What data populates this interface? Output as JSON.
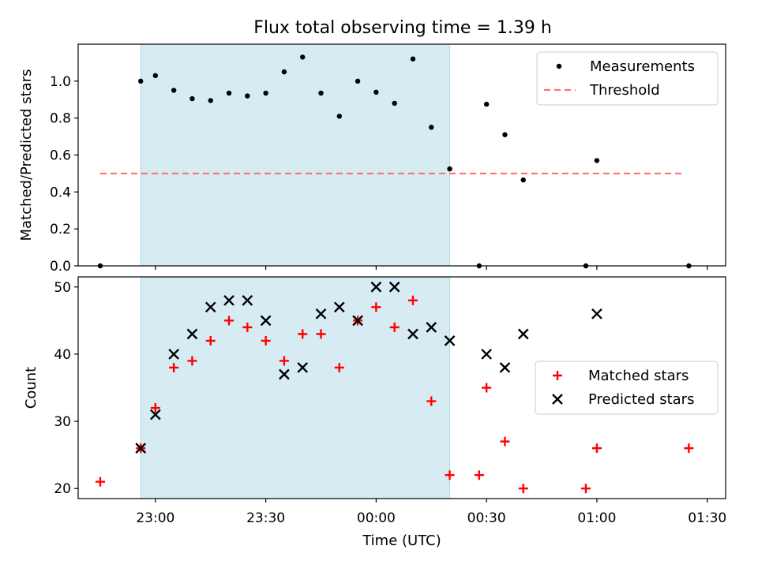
{
  "chart_data": [
    {
      "type": "scatter",
      "title": "Flux total observing time = 1.39 h",
      "xlabel": "",
      "ylabel": "Matched/Predicted stars",
      "xlim_minutes": [
        -81,
        95
      ],
      "ylim": [
        0,
        1.2
      ],
      "yticks": [
        0.0,
        0.2,
        0.4,
        0.6,
        0.8,
        1.0
      ],
      "ytick_labels": [
        "0.0",
        "0.2",
        "0.4",
        "0.6",
        "0.8",
        "1.0"
      ],
      "highlight_span_minutes": [
        -64,
        20
      ],
      "legend_position": "top-right",
      "series": [
        {
          "name": "Measurements",
          "marker": "dot",
          "color": "#000000",
          "points": [
            [
              -75,
              0.0
            ],
            [
              -64,
              1.0
            ],
            [
              -60,
              1.03
            ],
            [
              -55,
              0.95
            ],
            [
              -50,
              0.905
            ],
            [
              -45,
              0.895
            ],
            [
              -40,
              0.935
            ],
            [
              -35,
              0.92
            ],
            [
              -30,
              0.935
            ],
            [
              -25,
              1.05
            ],
            [
              -20,
              1.13
            ],
            [
              -15,
              0.935
            ],
            [
              -10,
              0.81
            ],
            [
              -5,
              1.0
            ],
            [
              0,
              0.94
            ],
            [
              5,
              0.88
            ],
            [
              10,
              1.12
            ],
            [
              15,
              0.75
            ],
            [
              20,
              0.525
            ],
            [
              28,
              0.0
            ],
            [
              30,
              0.875
            ],
            [
              35,
              0.71
            ],
            [
              40,
              0.465
            ],
            [
              57,
              0.0
            ],
            [
              60,
              0.57
            ],
            [
              85,
              0.0
            ]
          ]
        },
        {
          "name": "Threshold",
          "marker": "dashed-line",
          "color": "#ff7070",
          "points": [
            [
              -75,
              0.5
            ],
            [
              84,
              0.5
            ]
          ]
        }
      ]
    },
    {
      "type": "scatter",
      "title": "",
      "xlabel": "Time (UTC)",
      "ylabel": "Count",
      "xlim_minutes": [
        -81,
        95
      ],
      "ylim": [
        18.5,
        51.5
      ],
      "yticks": [
        20,
        30,
        40,
        50
      ],
      "ytick_labels": [
        "20",
        "30",
        "40",
        "50"
      ],
      "xticks_minutes": [
        -60,
        -30,
        0,
        30,
        60,
        90
      ],
      "xtick_labels": [
        "23:00",
        "23:30",
        "00:00",
        "00:30",
        "01:00",
        "01:30"
      ],
      "highlight_span_minutes": [
        -64,
        20
      ],
      "legend_position": "center-right",
      "series": [
        {
          "name": "Matched stars",
          "marker": "plus",
          "color": "#ff0000",
          "points": [
            [
              -75,
              21
            ],
            [
              -64,
              26
            ],
            [
              -60,
              32
            ],
            [
              -55,
              38
            ],
            [
              -50,
              39
            ],
            [
              -45,
              42
            ],
            [
              -40,
              45
            ],
            [
              -35,
              44
            ],
            [
              -30,
              42
            ],
            [
              -25,
              39
            ],
            [
              -20,
              43
            ],
            [
              -15,
              43
            ],
            [
              -10,
              38
            ],
            [
              -5,
              45
            ],
            [
              0,
              47
            ],
            [
              5,
              44
            ],
            [
              10,
              48
            ],
            [
              15,
              33
            ],
            [
              20,
              22
            ],
            [
              28,
              22
            ],
            [
              30,
              35
            ],
            [
              35,
              27
            ],
            [
              40,
              20
            ],
            [
              57,
              20
            ],
            [
              60,
              26
            ],
            [
              85,
              26
            ]
          ]
        },
        {
          "name": "Predicted stars",
          "marker": "x",
          "color": "#000000",
          "points": [
            [
              -64,
              26
            ],
            [
              -60,
              31
            ],
            [
              -55,
              40
            ],
            [
              -50,
              43
            ],
            [
              -45,
              47
            ],
            [
              -40,
              48
            ],
            [
              -35,
              48
            ],
            [
              -30,
              45
            ],
            [
              -25,
              37
            ],
            [
              -20,
              38
            ],
            [
              -15,
              46
            ],
            [
              -10,
              47
            ],
            [
              -5,
              45
            ],
            [
              0,
              50
            ],
            [
              5,
              50
            ],
            [
              10,
              43
            ],
            [
              15,
              44
            ],
            [
              20,
              42
            ],
            [
              30,
              40
            ],
            [
              35,
              38
            ],
            [
              40,
              43
            ],
            [
              60,
              46
            ]
          ]
        }
      ]
    }
  ]
}
